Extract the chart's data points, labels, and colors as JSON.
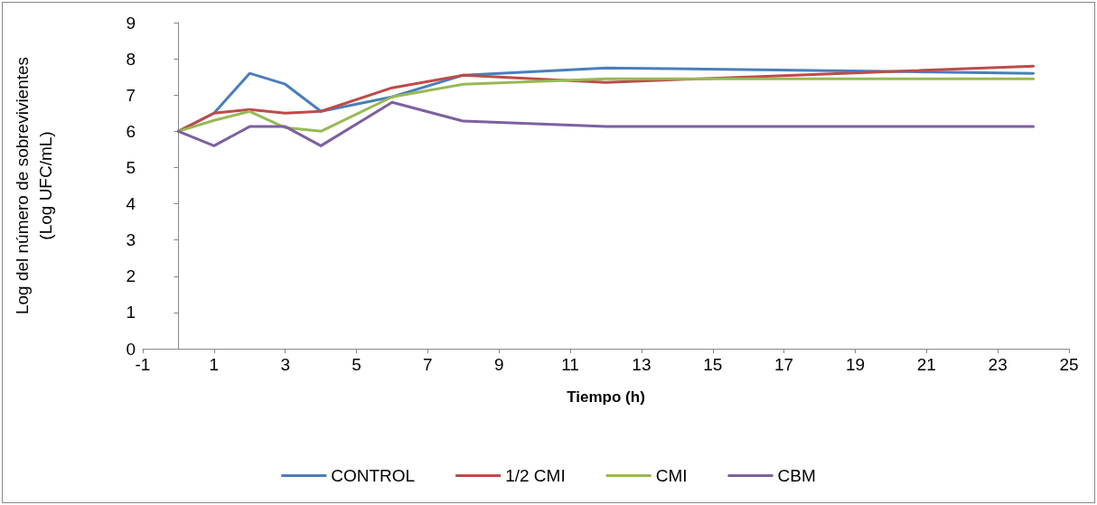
{
  "chart_data": {
    "type": "line",
    "xlabel": "Tiempo (h)",
    "ylabel": "Log del número de sobrevivientes\n(Log UFC/mL)",
    "x": [
      0,
      1,
      2,
      3,
      4,
      6,
      8,
      12,
      24
    ],
    "series": [
      {
        "name": "CONTROL",
        "color": "#4a7ebb",
        "values": [
          6,
          6.5,
          7.6,
          7.3,
          6.55,
          6.95,
          7.55,
          7.75,
          7.6
        ]
      },
      {
        "name": "1/2 CMI",
        "color": "#be4b48",
        "values": [
          6,
          6.5,
          6.6,
          6.5,
          6.55,
          7.2,
          7.55,
          7.35,
          7.8
        ]
      },
      {
        "name": "CMI",
        "color": "#98b954",
        "values": [
          6,
          6.3,
          6.55,
          6.1,
          6,
          6.95,
          7.3,
          7.45,
          7.45
        ]
      },
      {
        "name": "CBM",
        "color": "#7d60a0",
        "values": [
          6,
          5.6,
          6.13,
          6.13,
          5.6,
          6.8,
          6.28,
          6.13,
          6.13
        ]
      }
    ],
    "xlim": [
      -1,
      25
    ],
    "xticks": [
      -1,
      1,
      3,
      5,
      7,
      9,
      11,
      13,
      15,
      17,
      19,
      21,
      23,
      25
    ],
    "ylim": [
      0,
      9
    ],
    "yticks": [
      0,
      1,
      2,
      3,
      4,
      5,
      6,
      7,
      8,
      9
    ],
    "grid": false,
    "legend": "bottom",
    "marker": "none",
    "line_style": "solid"
  }
}
